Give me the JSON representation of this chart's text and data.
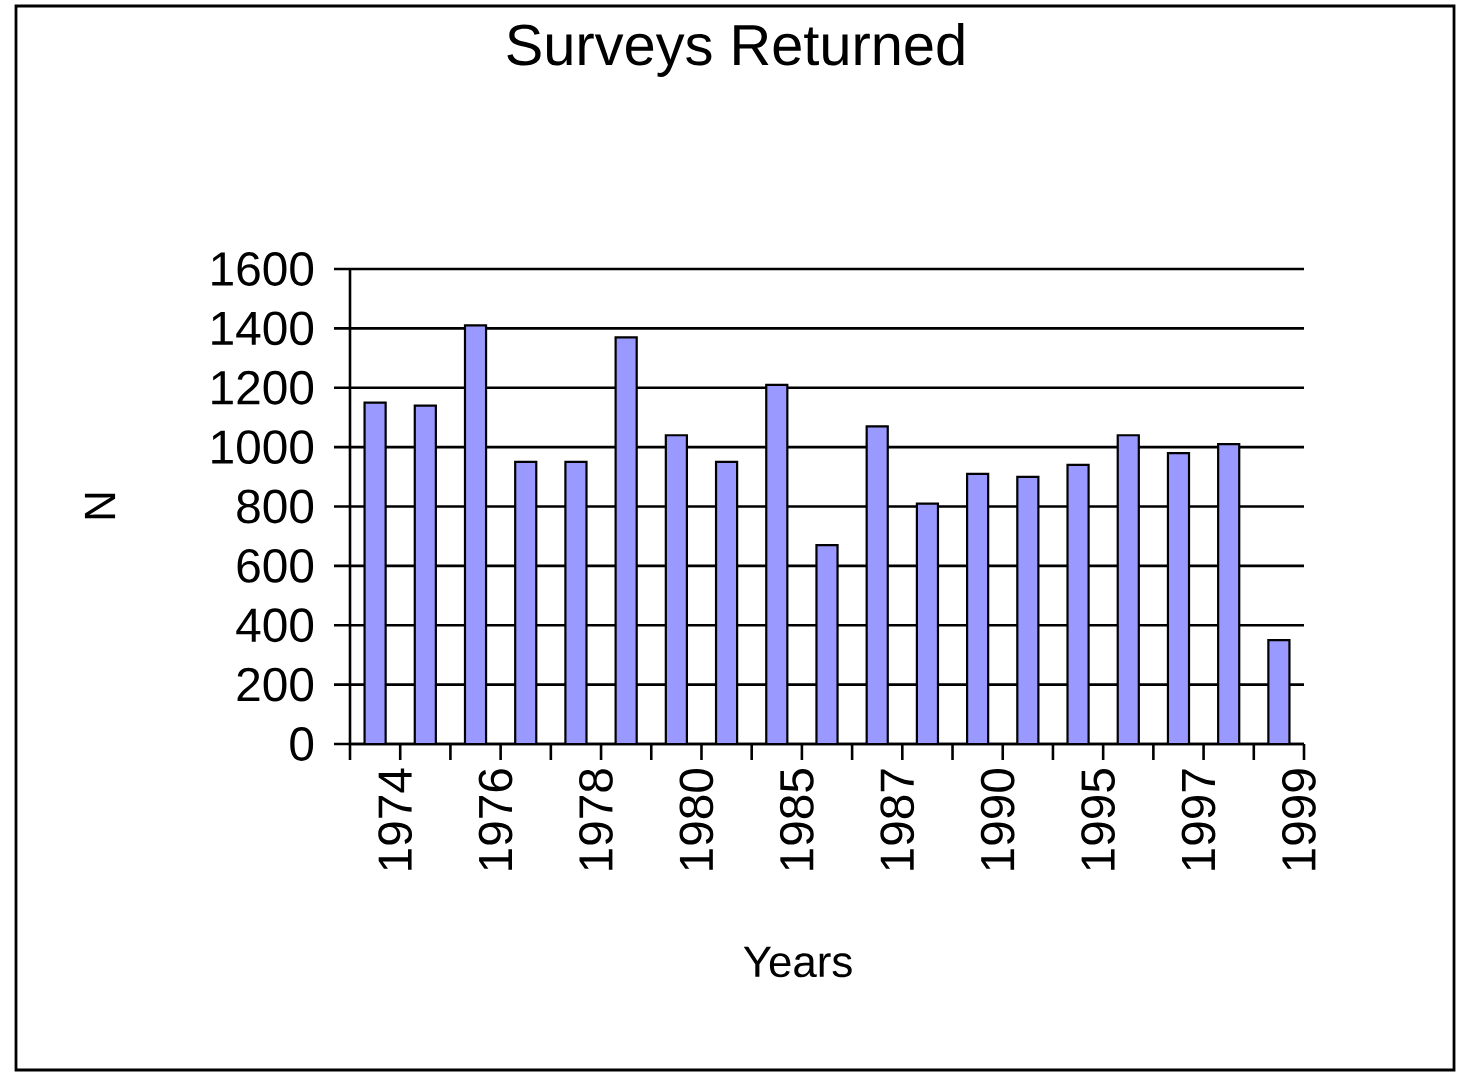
{
  "chart_data": {
    "type": "bar",
    "title": "Surveys Returned",
    "xlabel": "Years",
    "ylabel": "N",
    "categories": [
      "1974",
      null,
      "1976",
      null,
      "1978",
      null,
      "1980",
      null,
      "1985",
      null,
      "1987",
      null,
      "1990",
      null,
      "1995",
      null,
      "1997",
      null,
      "1999"
    ],
    "values": [
      1150,
      1140,
      1410,
      950,
      950,
      1370,
      1040,
      950,
      1210,
      670,
      1070,
      810,
      910,
      900,
      940,
      1040,
      980,
      1010,
      350
    ],
    "color": "#9999ff",
    "ylim": [
      0,
      1600
    ],
    "yticks": [
      0,
      200,
      400,
      600,
      800,
      1000,
      1200,
      1400,
      1600
    ],
    "grid": "y"
  }
}
